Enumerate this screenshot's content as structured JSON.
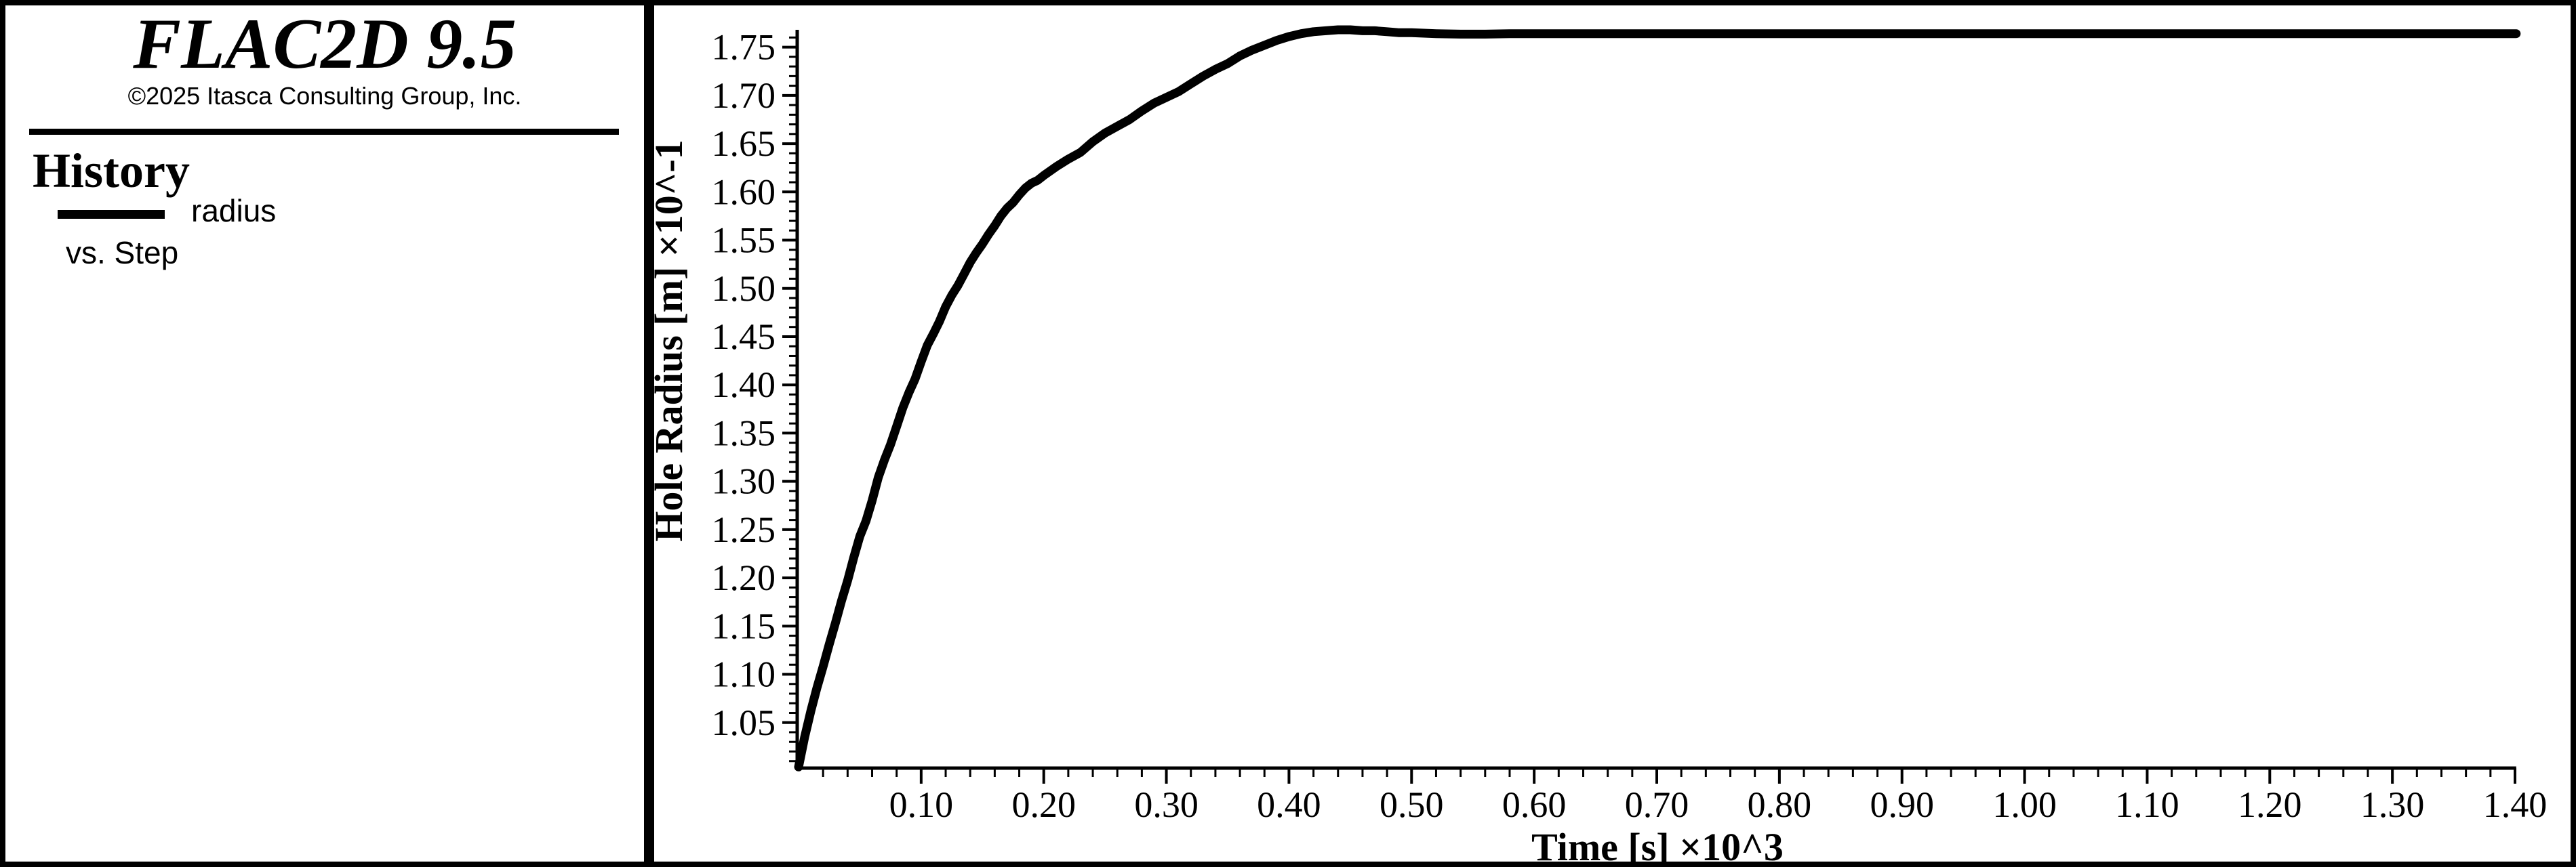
{
  "window": {
    "background": "#ffffff",
    "frame_color": "#000000"
  },
  "branding": {
    "title": "FLAC2D 9.5",
    "copyright": "©2025 Itasca Consulting Group, Inc."
  },
  "legend": {
    "heading": "History",
    "series": [
      {
        "label": "radius",
        "swatch_color": "#000000"
      }
    ],
    "subtitle": "vs. Step"
  },
  "chart_data": {
    "type": "line",
    "title": "",
    "xlabel": "Time [s] ×10^3",
    "ylabel": "Hole Radius [m] ×10^-1",
    "xlim": [
      0,
      1.401
    ],
    "ylim": [
      1.0035,
      1.768
    ],
    "grid": false,
    "legend_position": "left-panel",
    "axis_color": "#000000",
    "x_major_ticks": [
      0.1,
      0.2,
      0.3,
      0.4,
      0.5,
      0.6,
      0.7,
      0.8,
      0.9,
      1.0,
      1.1,
      1.2,
      1.3,
      1.4
    ],
    "x_tick_labels": [
      "0.10",
      "0.20",
      "0.30",
      "0.40",
      "0.50",
      "0.60",
      "0.70",
      "0.80",
      "0.90",
      "1.00",
      "1.10",
      "1.20",
      "1.30",
      "1.40"
    ],
    "x_minor_step": 0.02,
    "y_major_ticks": [
      1.05,
      1.1,
      1.15,
      1.2,
      1.25,
      1.3,
      1.35,
      1.4,
      1.45,
      1.5,
      1.55,
      1.6,
      1.65,
      1.7,
      1.75
    ],
    "y_tick_labels": [
      "1.05",
      "1.10",
      "1.15",
      "1.20",
      "1.25",
      "1.30",
      "1.35",
      "1.40",
      "1.45",
      "1.50",
      "1.55",
      "1.60",
      "1.65",
      "1.70",
      "1.75"
    ],
    "y_minor_step": 0.01,
    "series": [
      {
        "name": "radius",
        "color": "#000000",
        "points": [
          [
            0.0,
            1.004
          ],
          [
            0.005,
            1.035
          ],
          [
            0.01,
            1.062
          ],
          [
            0.015,
            1.086
          ],
          [
            0.02,
            1.108
          ],
          [
            0.025,
            1.131
          ],
          [
            0.03,
            1.153
          ],
          [
            0.035,
            1.176
          ],
          [
            0.04,
            1.197
          ],
          [
            0.045,
            1.221
          ],
          [
            0.05,
            1.243
          ],
          [
            0.055,
            1.259
          ],
          [
            0.06,
            1.28
          ],
          [
            0.065,
            1.304
          ],
          [
            0.07,
            1.322
          ],
          [
            0.075,
            1.338
          ],
          [
            0.08,
            1.357
          ],
          [
            0.085,
            1.376
          ],
          [
            0.09,
            1.392
          ],
          [
            0.095,
            1.406
          ],
          [
            0.1,
            1.424
          ],
          [
            0.105,
            1.441
          ],
          [
            0.11,
            1.453
          ],
          [
            0.115,
            1.466
          ],
          [
            0.12,
            1.481
          ],
          [
            0.125,
            1.493
          ],
          [
            0.13,
            1.503
          ],
          [
            0.135,
            1.515
          ],
          [
            0.14,
            1.527
          ],
          [
            0.145,
            1.537
          ],
          [
            0.15,
            1.546
          ],
          [
            0.155,
            1.556
          ],
          [
            0.16,
            1.565
          ],
          [
            0.165,
            1.575
          ],
          [
            0.17,
            1.583
          ],
          [
            0.175,
            1.589
          ],
          [
            0.18,
            1.597
          ],
          [
            0.185,
            1.604
          ],
          [
            0.19,
            1.609
          ],
          [
            0.195,
            1.612
          ],
          [
            0.2,
            1.617
          ],
          [
            0.21,
            1.626
          ],
          [
            0.22,
            1.634
          ],
          [
            0.23,
            1.641
          ],
          [
            0.24,
            1.652
          ],
          [
            0.25,
            1.661
          ],
          [
            0.26,
            1.668
          ],
          [
            0.27,
            1.675
          ],
          [
            0.28,
            1.684
          ],
          [
            0.29,
            1.692
          ],
          [
            0.3,
            1.698
          ],
          [
            0.31,
            1.704
          ],
          [
            0.32,
            1.712
          ],
          [
            0.33,
            1.72
          ],
          [
            0.34,
            1.727
          ],
          [
            0.35,
            1.733
          ],
          [
            0.36,
            1.741
          ],
          [
            0.37,
            1.747
          ],
          [
            0.38,
            1.752
          ],
          [
            0.39,
            1.757
          ],
          [
            0.4,
            1.761
          ],
          [
            0.41,
            1.764
          ],
          [
            0.42,
            1.766
          ],
          [
            0.43,
            1.767
          ],
          [
            0.44,
            1.768
          ],
          [
            0.45,
            1.768
          ],
          [
            0.46,
            1.767
          ],
          [
            0.47,
            1.767
          ],
          [
            0.48,
            1.766
          ],
          [
            0.49,
            1.765
          ],
          [
            0.5,
            1.765
          ],
          [
            0.52,
            1.764
          ],
          [
            0.54,
            1.7635
          ],
          [
            0.56,
            1.7635
          ],
          [
            0.58,
            1.764
          ],
          [
            0.6,
            1.764
          ],
          [
            0.65,
            1.764
          ],
          [
            0.7,
            1.764
          ],
          [
            0.75,
            1.764
          ],
          [
            0.8,
            1.764
          ],
          [
            0.85,
            1.764
          ],
          [
            0.9,
            1.764
          ],
          [
            0.95,
            1.764
          ],
          [
            1.0,
            1.764
          ],
          [
            1.05,
            1.764
          ],
          [
            1.1,
            1.764
          ],
          [
            1.15,
            1.764
          ],
          [
            1.2,
            1.764
          ],
          [
            1.25,
            1.764
          ],
          [
            1.3,
            1.764
          ],
          [
            1.35,
            1.764
          ],
          [
            1.401,
            1.764
          ]
        ]
      }
    ]
  }
}
